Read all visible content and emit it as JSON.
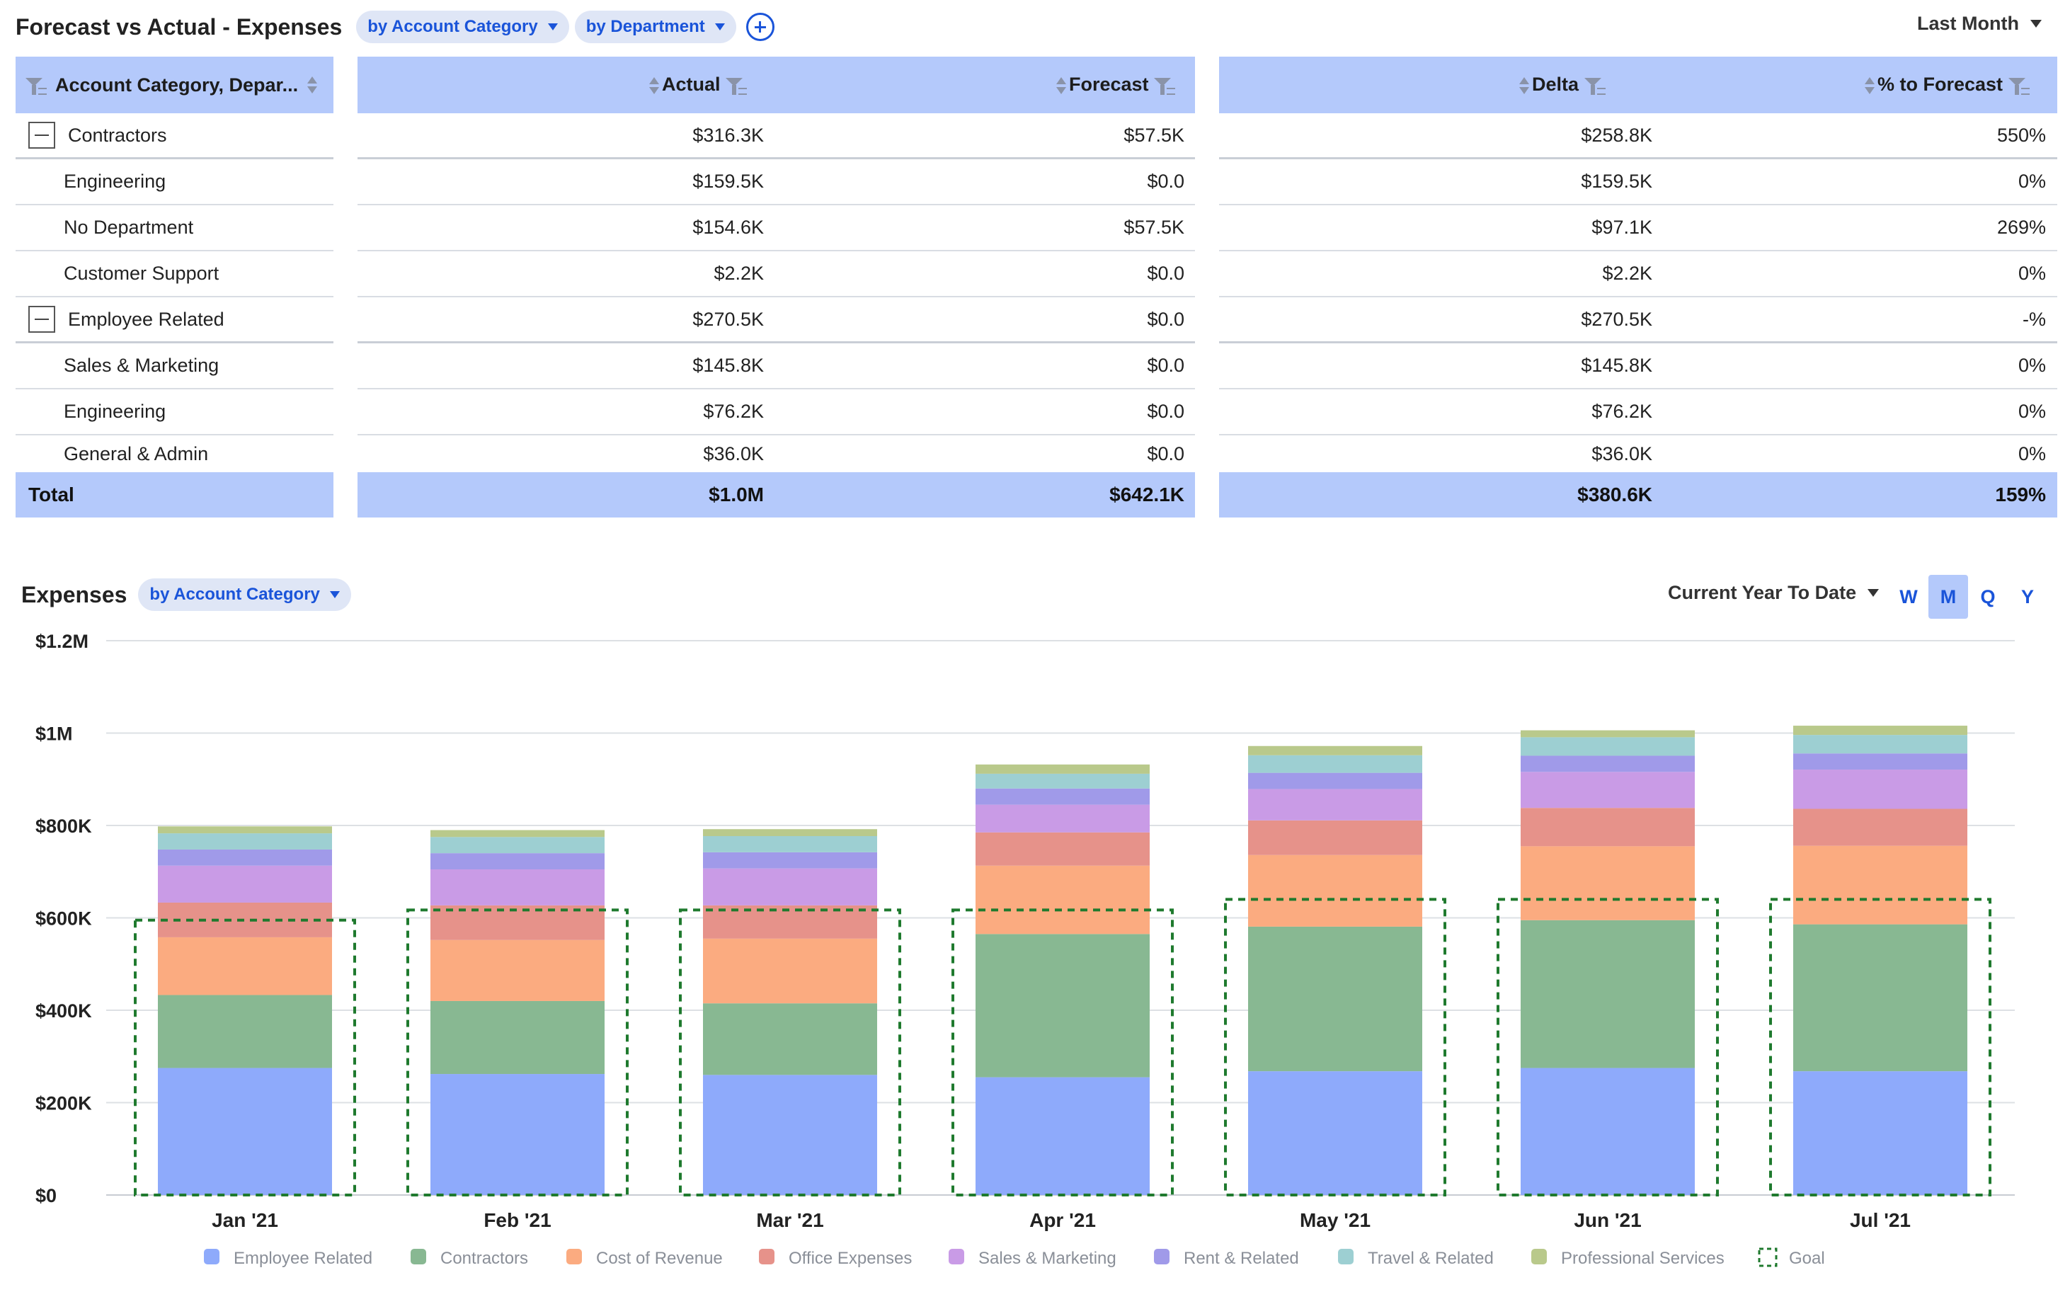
{
  "header": {
    "title": "Forecast vs Actual - Expenses",
    "filter_account": "by Account Category",
    "filter_department": "by Department",
    "range": "Last Month"
  },
  "table": {
    "columns": {
      "category": "Account Category, Depar...",
      "actual": "Actual",
      "forecast": "Forecast",
      "delta": "Delta",
      "pct": "% to Forecast"
    },
    "rows": [
      {
        "label": "Contractors",
        "group": true,
        "actual": "$316.3K",
        "forecast": "$57.5K",
        "delta": "$258.8K",
        "pct": "550%"
      },
      {
        "label": "Engineering",
        "group": false,
        "actual": "$159.5K",
        "forecast": "$0.0",
        "delta": "$159.5K",
        "pct": "0%"
      },
      {
        "label": "No Department",
        "group": false,
        "actual": "$154.6K",
        "forecast": "$57.5K",
        "delta": "$97.1K",
        "pct": "269%"
      },
      {
        "label": "Customer Support",
        "group": false,
        "actual": "$2.2K",
        "forecast": "$0.0",
        "delta": "$2.2K",
        "pct": "0%"
      },
      {
        "label": "Employee Related",
        "group": true,
        "actual": "$270.5K",
        "forecast": "$0.0",
        "delta": "$270.5K",
        "pct": "-%"
      },
      {
        "label": "Sales & Marketing",
        "group": false,
        "actual": "$145.8K",
        "forecast": "$0.0",
        "delta": "$145.8K",
        "pct": "0%"
      },
      {
        "label": "Engineering",
        "group": false,
        "actual": "$76.2K",
        "forecast": "$0.0",
        "delta": "$76.2K",
        "pct": "0%"
      },
      {
        "label": "General & Admin",
        "group": false,
        "actual": "$36.0K",
        "forecast": "$0.0",
        "delta": "$36.0K",
        "pct": "0%"
      }
    ],
    "total": {
      "label": "Total",
      "actual": "$1.0M",
      "forecast": "$642.1K",
      "delta": "$380.6K",
      "pct": "159%"
    }
  },
  "expenses": {
    "title": "Expenses",
    "filter": "by Account Category",
    "range": "Current Year To Date",
    "periods": [
      "W",
      "M",
      "Q",
      "Y"
    ],
    "active_period": "M"
  },
  "chart_data": {
    "type": "bar",
    "stacked": true,
    "categories": [
      "Jan '21",
      "Feb '21",
      "Mar '21",
      "Apr '21",
      "May '21",
      "Jun '21",
      "Jul '21"
    ],
    "ylim": [
      0,
      1200000
    ],
    "yticks": [
      0,
      200000,
      400000,
      600000,
      800000,
      1000000,
      1200000
    ],
    "ytick_labels": [
      "$0",
      "$200K",
      "$400K",
      "$600K",
      "$800K",
      "$1M",
      "$1.2M"
    ],
    "grid": true,
    "legend_position": "bottom",
    "series": [
      {
        "name": "Employee Related",
        "color": "#8eaafb",
        "values": [
          275000,
          262000,
          260000,
          255000,
          268000,
          275000,
          268000
        ]
      },
      {
        "name": "Contractors",
        "color": "#88b892",
        "values": [
          158000,
          158000,
          155000,
          310000,
          313000,
          320000,
          318000
        ]
      },
      {
        "name": "Cost of Revenue",
        "color": "#fbab80",
        "values": [
          125000,
          132000,
          140000,
          148000,
          155000,
          160000,
          170000
        ]
      },
      {
        "name": "Office Expenses",
        "color": "#e6928a",
        "values": [
          75000,
          75000,
          72000,
          72000,
          75000,
          83000,
          80000
        ]
      },
      {
        "name": "Sales & Marketing",
        "color": "#c99be6",
        "values": [
          80000,
          78000,
          80000,
          60000,
          68000,
          78000,
          85000
        ]
      },
      {
        "name": "Rent & Related",
        "color": "#a09ae9",
        "values": [
          35000,
          35000,
          35000,
          35000,
          35000,
          35000,
          35000
        ]
      },
      {
        "name": "Travel & Related",
        "color": "#9dcfd2",
        "values": [
          35000,
          35000,
          35000,
          32000,
          38000,
          40000,
          40000
        ]
      },
      {
        "name": "Professional Services",
        "color": "#b9c98b",
        "values": [
          15000,
          15000,
          15000,
          20000,
          20000,
          15000,
          20000
        ]
      }
    ],
    "goal": {
      "name": "Goal",
      "color": "#1f7a2e",
      "values": [
        595000,
        617000,
        617000,
        617000,
        640000,
        640000,
        640000
      ]
    }
  }
}
